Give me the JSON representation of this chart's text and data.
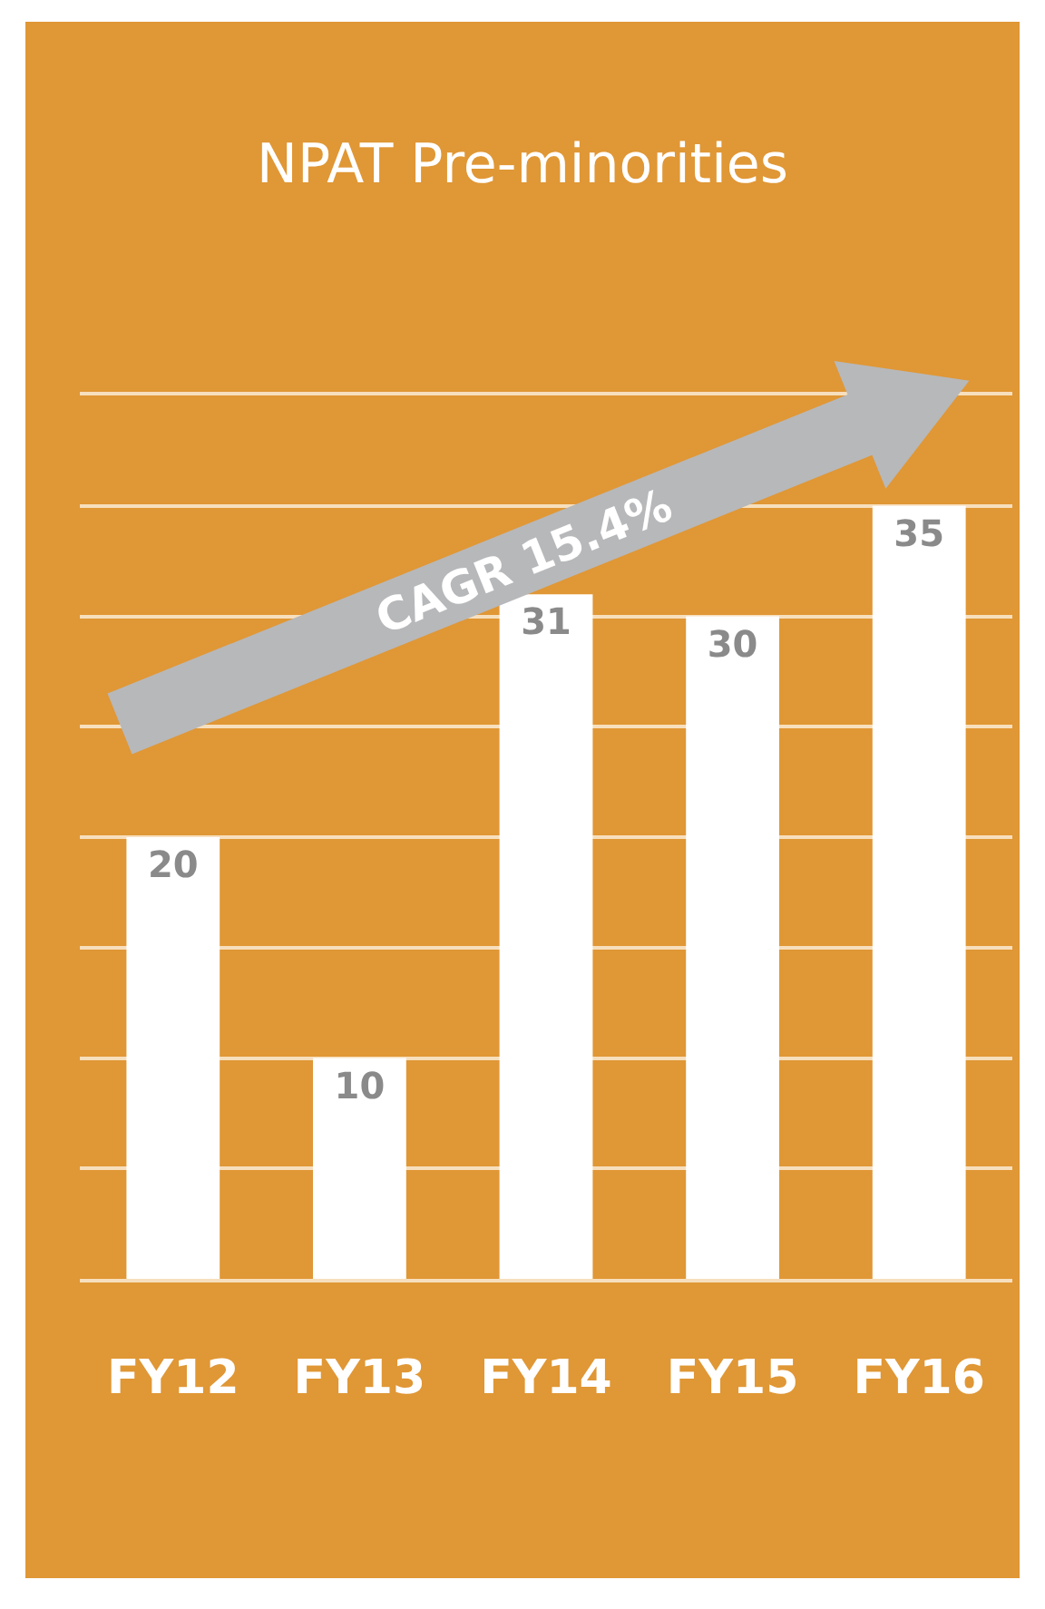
{
  "chart_data": {
    "type": "bar",
    "title": "NPAT Pre-minorities",
    "categories": [
      "FY12",
      "FY13",
      "FY14",
      "FY15",
      "FY16"
    ],
    "values": [
      20,
      10,
      31,
      30,
      35
    ],
    "color": "#ffffff",
    "data_labels": true,
    "ylim": [
      0,
      40
    ],
    "yticks": [
      {
        "value": 0,
        "label": null
      },
      {
        "value": 5,
        "label": null
      },
      {
        "value": 10,
        "label": null
      },
      {
        "value": 15,
        "label": null
      },
      {
        "value": 20,
        "label": null
      },
      {
        "value": 25,
        "label": null
      },
      {
        "value": 30,
        "label": null
      },
      {
        "value": 35,
        "label": null
      },
      {
        "value": 40,
        "label": null
      }
    ],
    "grid": "y",
    "tick_labels": "x",
    "annotations": [
      "CAGR 15.4%"
    ]
  }
}
